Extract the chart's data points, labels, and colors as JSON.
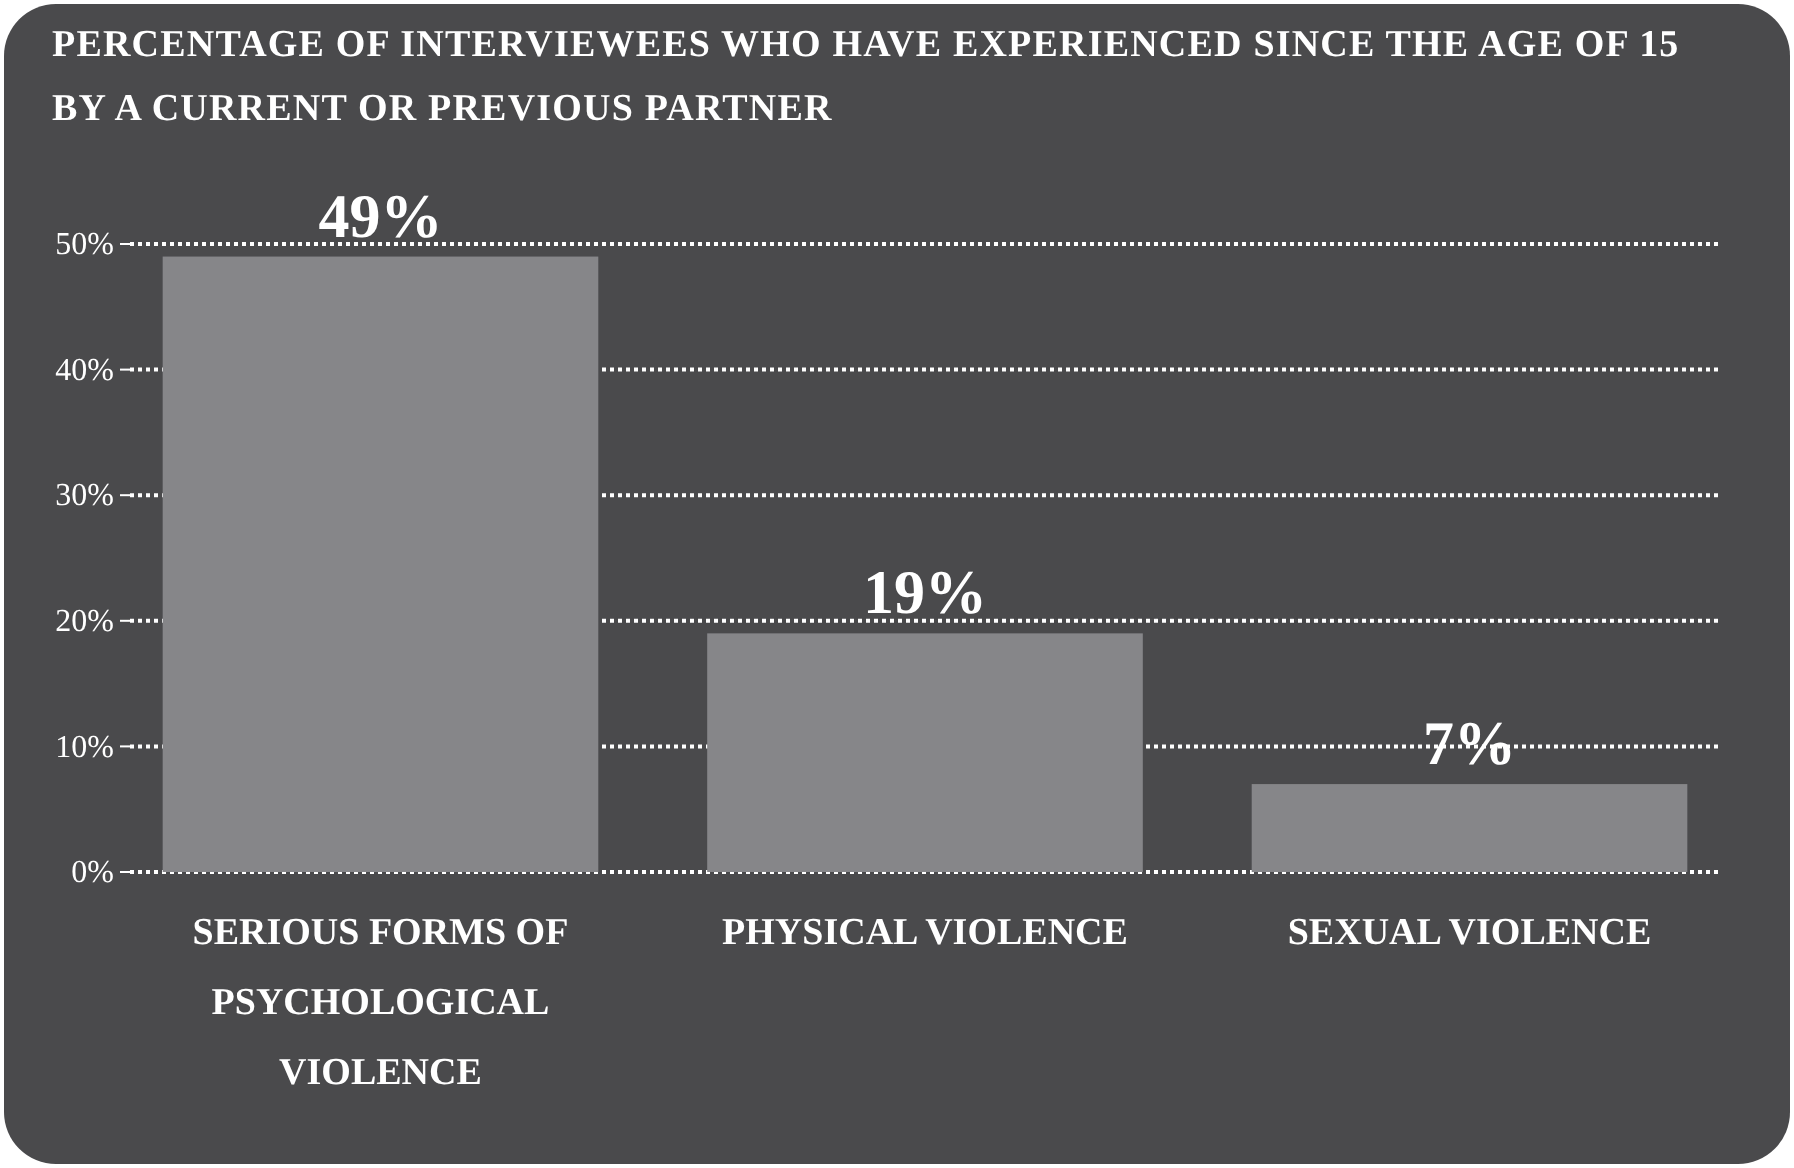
{
  "chart_data": {
    "type": "bar",
    "title": "PERCENTAGE OF INTERVIEWEES WHO HAVE EXPERIENCED SINCE THE AGE OF 15 BY A CURRENT OR PREVIOUS PARTNER",
    "categories": [
      "SERIOUS FORMS OF PSYCHOLOGICAL VIOLENCE",
      "PHYSICAL VIOLENCE",
      "SEXUAL VIOLENCE"
    ],
    "values": [
      49,
      19,
      7
    ],
    "value_labels": [
      "49%",
      "19%",
      "7%"
    ],
    "color": "#868689",
    "ylim": [
      0,
      50
    ],
    "yticks": [
      {
        "value": 0,
        "label": "0%"
      },
      {
        "value": 10,
        "label": "10%"
      },
      {
        "value": 20,
        "label": "20%"
      },
      {
        "value": 30,
        "label": "30%"
      },
      {
        "value": 40,
        "label": "40%"
      },
      {
        "value": 50,
        "label": "50%"
      }
    ],
    "grid": "y"
  }
}
